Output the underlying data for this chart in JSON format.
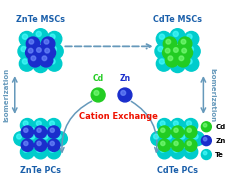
{
  "bg_color": "#ffffff",
  "title_color": "#1a5faa",
  "Te_color": "#00cccc",
  "Zn_color": "#1a2ecc",
  "Cd_color": "#22cc22",
  "arrow_color": "#6699bb",
  "cation_exchange_color": "#ee1100",
  "labels": {
    "top_left": "ZnTe MSCs",
    "top_right": "CdTe MSCs",
    "bot_left": "ZnTe PCs",
    "bot_right": "CdTe PCs",
    "left_arrow": "Isomerization",
    "right_arrow": "Isomerization",
    "cation_exchange": "Cation Exchange",
    "Cd_label": "Cd",
    "Zn_label": "Zn",
    "legend_Cd": "Cd",
    "legend_Zn": "Zn",
    "legend_Te": "Te"
  }
}
